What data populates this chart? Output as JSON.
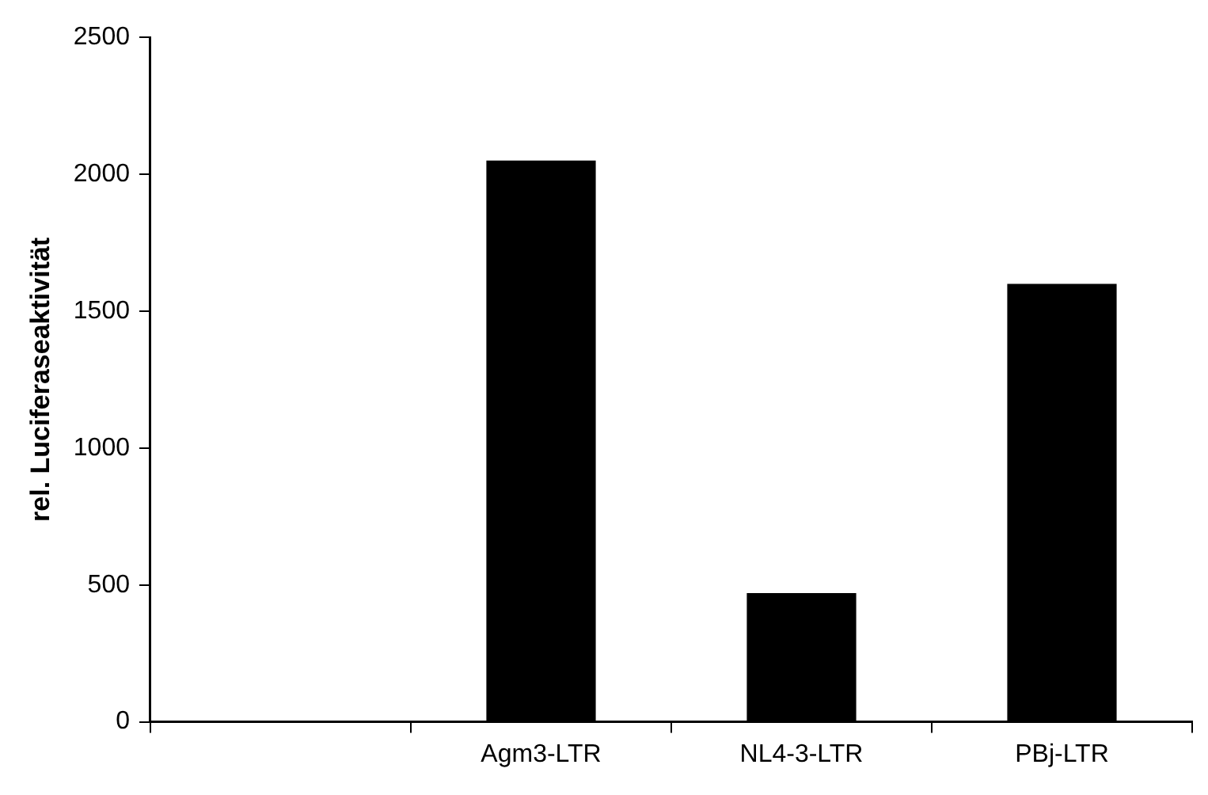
{
  "chart_data": {
    "type": "bar",
    "ylabel": "rel. Luciferaseaktivität",
    "categories": [
      null,
      "Agm3-LTR",
      "NL4-3-LTR",
      "PBj-LTR"
    ],
    "values": [
      0,
      2050,
      470,
      1600
    ],
    "color": "#000000",
    "ylim": [
      0,
      2500
    ],
    "yticks": [
      0,
      500,
      1000,
      1500,
      2000,
      2500
    ],
    "grid": false,
    "legend": false
  }
}
